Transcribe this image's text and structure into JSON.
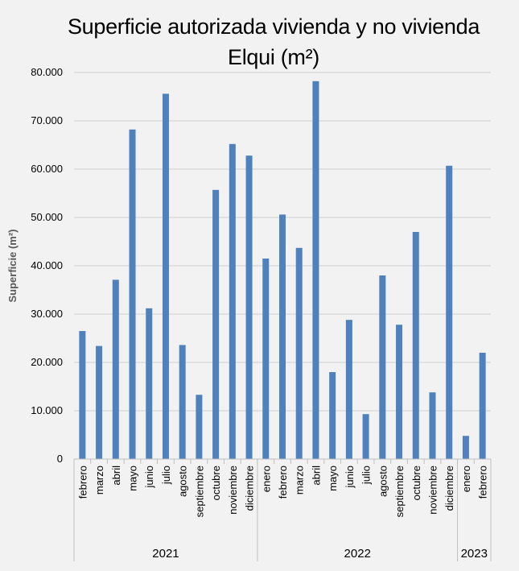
{
  "chart_data": {
    "type": "bar",
    "title": "Superficie autorizada vivienda y no vivienda Elqui (m²)",
    "ylabel": "Superficie (m²)",
    "xlabel": "",
    "ylim": [
      0,
      80000
    ],
    "ytick_labels": [
      "0",
      "10.000",
      "20.000",
      "30.000",
      "40.000",
      "50.000",
      "60.000",
      "70.000",
      "80.000"
    ],
    "grid": true,
    "color": "#4f81bd",
    "categories": [
      "febrero",
      "marzo",
      "abril",
      "mayo",
      "junio",
      "julio",
      "agosto",
      "septiembre",
      "octubre",
      "noviembre",
      "diciembre",
      "enero",
      "febrero",
      "marzo",
      "abril",
      "mayo",
      "junio",
      "julio",
      "agosto",
      "septiembre",
      "octubre",
      "noviembre",
      "diciembre",
      "enero",
      "febrero"
    ],
    "groups": [
      {
        "label": "2021",
        "count": 11
      },
      {
        "label": "2022",
        "count": 12
      },
      {
        "label": "2023",
        "count": 2
      }
    ],
    "values": [
      26500,
      23400,
      37100,
      68200,
      31200,
      75600,
      23600,
      13300,
      55700,
      65200,
      62800,
      41500,
      50600,
      43700,
      78200,
      18000,
      28800,
      9300,
      38000,
      27800,
      47000,
      13800,
      60700,
      4800,
      22000
    ]
  }
}
